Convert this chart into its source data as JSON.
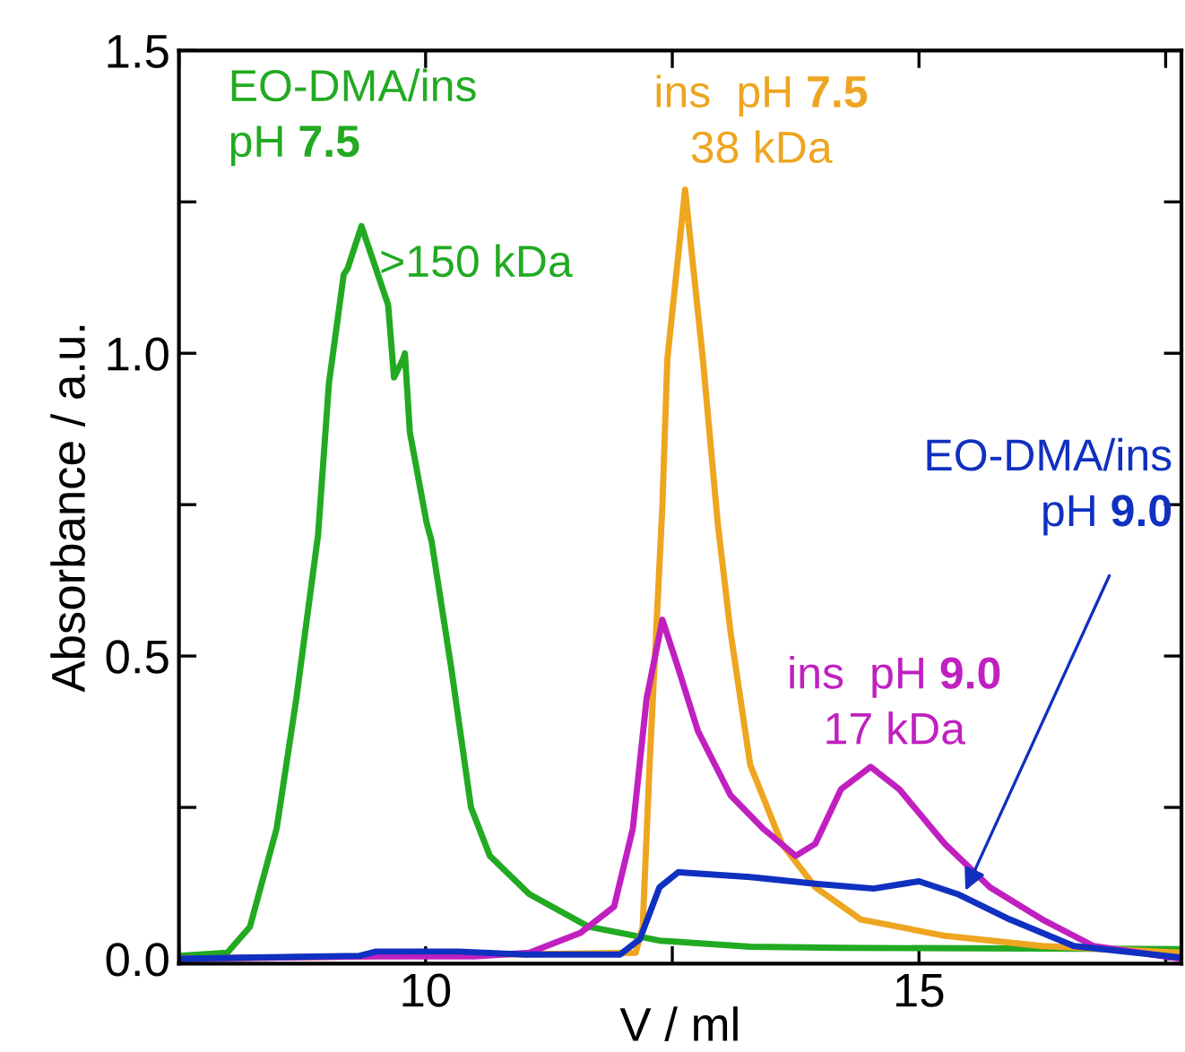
{
  "chart_data": {
    "type": "line",
    "xlabel": "V / ml",
    "ylabel": "Absorbance / a.u.",
    "xlim": [
      7.5,
      17.66
    ],
    "ylim": [
      -0.008,
      1.5
    ],
    "xticks": [
      {
        "value": 7.5,
        "label": null
      },
      10,
      {
        "value": 12.5,
        "label": null
      },
      15,
      {
        "value": 17.5,
        "label": null
      }
    ],
    "yticks": [
      {
        "value": 0,
        "label": "0.0"
      },
      {
        "value": 0.25,
        "label": null
      },
      {
        "value": 0.5,
        "label": "0.5"
      },
      {
        "value": 0.75,
        "label": null
      },
      {
        "value": 1.0,
        "label": "1.0"
      },
      {
        "value": 1.25,
        "label": null
      },
      {
        "value": 1.5,
        "label": "1.5"
      }
    ],
    "grid": false,
    "legend": false,
    "marker": "none",
    "line_style": "solid",
    "series": [
      {
        "color": "#22aa22",
        "x": [
          7.5,
          7.99,
          8.22,
          8.49,
          8.69,
          8.91,
          9.02,
          9.17,
          9.21,
          9.35,
          9.62,
          9.68,
          9.71,
          9.77,
          9.79,
          9.84,
          10.01,
          10.06,
          10.26,
          10.46,
          10.65,
          11.05,
          11.65,
          12.37,
          13.29,
          14.2,
          17.66
        ],
        "values": [
          0.005,
          0.01,
          0.053,
          0.215,
          0.43,
          0.7,
          0.95,
          1.13,
          1.14,
          1.21,
          1.08,
          0.96,
          0.97,
          0.99,
          1.0,
          0.87,
          0.72,
          0.69,
          0.48,
          0.25,
          0.17,
          0.107,
          0.053,
          0.03,
          0.02,
          0.018,
          0.016
        ]
      },
      {
        "color": "#eea520",
        "x": [
          7.5,
          12.13,
          12.2,
          12.27,
          12.4,
          12.45,
          12.63,
          12.81,
          12.96,
          13.09,
          13.29,
          13.61,
          13.95,
          14.41,
          15.26,
          16.25,
          17.66
        ],
        "values": [
          0.0,
          0.01,
          0.053,
          0.32,
          0.75,
          0.99,
          1.27,
          0.99,
          0.72,
          0.54,
          0.32,
          0.19,
          0.118,
          0.065,
          0.038,
          0.021,
          0.01
        ]
      },
      {
        "color": "#c020c0",
        "x": [
          7.5,
          9.5,
          10.5,
          11.05,
          11.57,
          11.91,
          12.1,
          12.24,
          12.4,
          12.56,
          12.76,
          13.09,
          13.42,
          13.75,
          13.95,
          14.21,
          14.51,
          14.8,
          15.26,
          15.72,
          16.25,
          16.77,
          17.66
        ],
        "values": [
          0.0,
          0.004,
          0.004,
          0.01,
          0.043,
          0.086,
          0.215,
          0.43,
          0.56,
          0.48,
          0.376,
          0.27,
          0.215,
          0.17,
          0.19,
          0.28,
          0.317,
          0.28,
          0.19,
          0.118,
          0.065,
          0.021,
          0.0
        ]
      },
      {
        "color": "#1030c0",
        "x": [
          7.5,
          9.33,
          9.5,
          10.33,
          11.0,
          11.97,
          12.17,
          12.37,
          12.56,
          13.29,
          13.95,
          14.54,
          15.0,
          15.39,
          15.92,
          16.57,
          17.66
        ],
        "values": [
          0.0,
          0.005,
          0.012,
          0.012,
          0.007,
          0.007,
          0.032,
          0.118,
          0.143,
          0.135,
          0.124,
          0.116,
          0.128,
          0.107,
          0.065,
          0.021,
          0.002
        ]
      }
    ],
    "annotations": [
      "EO-DMA/ins\npH 7.5",
      ">150 kDa",
      "ins  pH 7.5\n38 kDa",
      {
        "text": "EO-DMA/ins\npH 9.0",
        "x": 15.45,
        "y": 0.105
      },
      "ins  pH 9.0\n17 kDa"
    ]
  }
}
